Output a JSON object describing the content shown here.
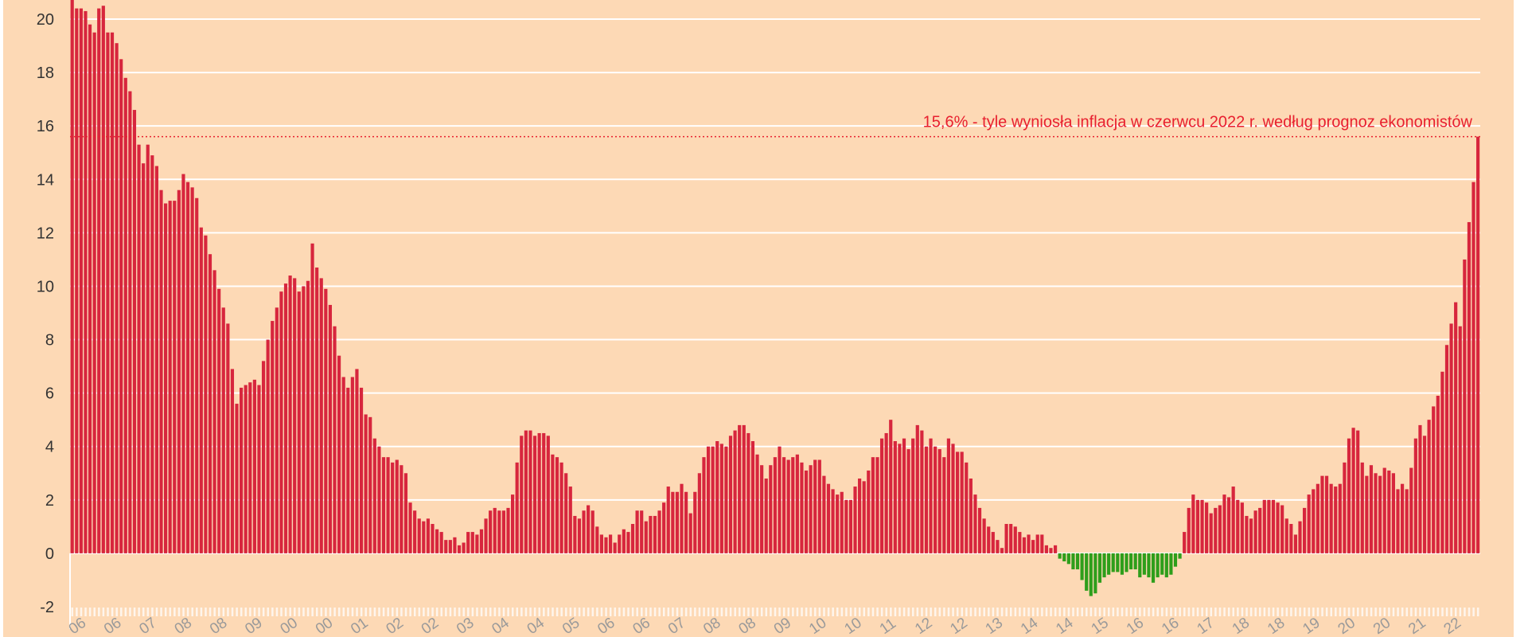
{
  "chart_data": {
    "type": "bar",
    "title": "",
    "xlabel": "",
    "ylabel": "",
    "ylim": [
      -2,
      20
    ],
    "yticks": [
      -2,
      0,
      2,
      4,
      6,
      8,
      10,
      12,
      14,
      16,
      18,
      20
    ],
    "grid": true,
    "x_start": "1996-12",
    "x_end": "2022-06",
    "frequency": "monthly",
    "x_tick_labels": [
      "06",
      "06",
      "07",
      "08",
      "08",
      "09",
      "00",
      "00",
      "01",
      "02",
      "02",
      "03",
      "04",
      "04",
      "05",
      "06",
      "06",
      "07",
      "08",
      "08",
      "09",
      "10",
      "10",
      "11",
      "12",
      "12",
      "13",
      "14",
      "14",
      "15",
      "16",
      "16",
      "17",
      "18",
      "18",
      "19",
      "20",
      "20",
      "21",
      "22"
    ],
    "colors": {
      "positive": "#d7263d",
      "negative": "#2e9e1b",
      "reference": "#e8202f",
      "grid": "#ffffff",
      "background": "#fdd9b5",
      "tick": "#333333",
      "xtick": "#9a9a9a"
    },
    "values": [
      20.8,
      20.4,
      20.4,
      20.3,
      19.8,
      19.5,
      20.4,
      20.5,
      19.5,
      19.5,
      19.1,
      18.5,
      17.8,
      17.3,
      16.6,
      15.3,
      14.6,
      15.3,
      14.9,
      14.5,
      13.6,
      13.1,
      13.2,
      13.2,
      13.6,
      14.2,
      13.9,
      13.7,
      13.3,
      12.2,
      11.9,
      11.2,
      10.6,
      9.9,
      9.2,
      8.6,
      6.9,
      5.6,
      6.2,
      6.3,
      6.4,
      6.5,
      6.3,
      7.2,
      8.0,
      8.7,
      9.2,
      9.8,
      10.1,
      10.4,
      10.3,
      9.8,
      10.0,
      10.2,
      11.6,
      10.7,
      10.3,
      9.9,
      9.3,
      8.5,
      7.4,
      6.6,
      6.2,
      6.6,
      6.9,
      6.2,
      5.2,
      5.1,
      4.3,
      4.0,
      3.6,
      3.6,
      3.4,
      3.5,
      3.3,
      3.0,
      1.9,
      1.6,
      1.3,
      1.2,
      1.3,
      1.1,
      0.9,
      0.8,
      0.5,
      0.5,
      0.6,
      0.3,
      0.4,
      0.8,
      0.8,
      0.7,
      0.9,
      1.3,
      1.6,
      1.7,
      1.6,
      1.6,
      1.7,
      2.2,
      3.4,
      4.4,
      4.6,
      4.6,
      4.4,
      4.5,
      4.5,
      4.4,
      3.7,
      3.6,
      3.4,
      3.0,
      2.5,
      1.4,
      1.3,
      1.6,
      1.8,
      1.6,
      1.0,
      0.7,
      0.6,
      0.7,
      0.4,
      0.7,
      0.9,
      0.8,
      1.1,
      1.6,
      1.6,
      1.2,
      1.4,
      1.4,
      1.6,
      1.9,
      2.5,
      2.3,
      2.3,
      2.6,
      2.3,
      1.5,
      2.3,
      3.0,
      3.6,
      4.0,
      4.0,
      4.2,
      4.1,
      4.0,
      4.4,
      4.6,
      4.8,
      4.8,
      4.5,
      4.2,
      3.7,
      3.3,
      2.8,
      3.3,
      3.6,
      4.0,
      3.6,
      3.5,
      3.6,
      3.7,
      3.4,
      3.1,
      3.3,
      3.5,
      3.5,
      2.9,
      2.6,
      2.4,
      2.2,
      2.3,
      2.0,
      2.0,
      2.5,
      2.8,
      2.7,
      3.1,
      3.6,
      3.6,
      4.3,
      4.5,
      5.0,
      4.2,
      4.1,
      4.3,
      3.9,
      4.3,
      4.8,
      4.6,
      4.0,
      4.3,
      4.0,
      3.9,
      3.6,
      4.3,
      4.1,
      3.8,
      3.8,
      3.4,
      2.8,
      2.2,
      1.7,
      1.3,
      1.0,
      0.8,
      0.5,
      0.2,
      1.1,
      1.1,
      1.0,
      0.8,
      0.6,
      0.7,
      0.5,
      0.7,
      0.7,
      0.3,
      0.2,
      0.3,
      -0.2,
      -0.3,
      -0.4,
      -0.6,
      -0.6,
      -1.0,
      -1.4,
      -1.6,
      -1.5,
      -1.1,
      -0.9,
      -0.8,
      -0.7,
      -0.7,
      -0.8,
      -0.7,
      -0.6,
      -0.6,
      -0.9,
      -0.8,
      -0.9,
      -1.1,
      -0.9,
      -0.8,
      -0.9,
      -0.8,
      -0.5,
      -0.2,
      0.8,
      1.7,
      2.2,
      2.0,
      2.0,
      1.9,
      1.5,
      1.7,
      1.8,
      2.2,
      2.1,
      2.5,
      2.0,
      1.9,
      1.4,
      1.3,
      1.6,
      1.7,
      2.0,
      2.0,
      2.0,
      1.9,
      1.8,
      1.3,
      1.1,
      0.7,
      1.2,
      1.7,
      2.2,
      2.4,
      2.6,
      2.9,
      2.9,
      2.6,
      2.5,
      2.6,
      3.4,
      4.3,
      4.7,
      4.6,
      3.4,
      2.9,
      3.3,
      3.0,
      2.9,
      3.2,
      3.1,
      3.0,
      2.4,
      2.6,
      2.4,
      3.2,
      4.3,
      4.8,
      4.4,
      5.0,
      5.5,
      5.9,
      6.8,
      7.8,
      8.6,
      9.4,
      8.5,
      11.0,
      12.4,
      13.9,
      15.6
    ],
    "reference_line": {
      "value": 15.6,
      "label": "15,6% - tyle wyniosła inflacja w czerwcu 2022 r. według prognoz ekonomistów"
    }
  }
}
